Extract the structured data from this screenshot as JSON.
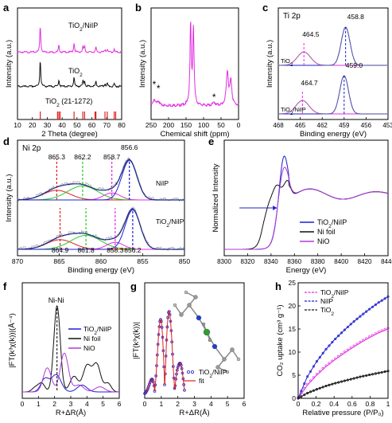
{
  "colors": {
    "pink": "#e22de0",
    "black": "#111111",
    "blue": "#1f1fcf",
    "purple": "#b03ad8",
    "red": "#e02020",
    "green": "#22cc22",
    "olive": "#9a9a3a",
    "gray": "#8c8c8c",
    "darkblue": "#1a2a8a"
  },
  "chart_data": [
    {
      "panel": "a",
      "type": "line",
      "xlabel": "2 Theta (degree)",
      "ylabel": "Intensity (a.u.)",
      "xlim": [
        10,
        80
      ],
      "xticks": [
        10,
        20,
        30,
        40,
        50,
        60,
        70,
        80
      ],
      "series": [
        {
          "name": "TiO2/NiIP",
          "label_main": "TiO",
          "label_sub": "2",
          "label_tail": "/NiIP",
          "color": "pink",
          "peaks": [
            [
              25.3,
              1.0
            ],
            [
              37.8,
              0.25
            ],
            [
              48.0,
              0.35
            ],
            [
              54.0,
              0.2
            ],
            [
              55.1,
              0.2
            ],
            [
              62.7,
              0.18
            ],
            [
              68.8,
              0.1
            ],
            [
              70.3,
              0.1
            ],
            [
              75.0,
              0.1
            ]
          ]
        },
        {
          "name": "TiO2",
          "label_main": "TiO",
          "label_sub": "2",
          "label_tail": "",
          "color": "black",
          "peaks": [
            [
              25.3,
              1.0
            ],
            [
              37.8,
              0.25
            ],
            [
              48.0,
              0.35
            ],
            [
              54.0,
              0.2
            ],
            [
              55.1,
              0.2
            ],
            [
              62.7,
              0.18
            ],
            [
              68.8,
              0.1
            ],
            [
              70.3,
              0.1
            ],
            [
              75.0,
              0.1
            ]
          ]
        }
      ],
      "reference": {
        "label_main": "TiO",
        "label_sub": "2",
        "label_tail": " (21-1272)",
        "color": "red",
        "positions": [
          25.3,
          36.9,
          37.8,
          38.6,
          48.0,
          53.9,
          55.1,
          62.1,
          62.7,
          68.8,
          70.3,
          75.0,
          76.0
        ]
      }
    },
    {
      "panel": "b",
      "type": "line",
      "xlabel": "Chemical shift (ppm)",
      "ylabel": "Intensity (a.u.)",
      "xlim": [
        250,
        0
      ],
      "xticks": [
        250,
        200,
        150,
        100,
        50,
        0
      ],
      "color": "pink",
      "annotations": [
        {
          "x": 241,
          "text": "*"
        },
        {
          "x": 229,
          "text": "*"
        },
        {
          "x": 70,
          "text": "*"
        }
      ],
      "peaks": [
        [
          241,
          0.08
        ],
        [
          229,
          0.06
        ],
        [
          137,
          1.0
        ],
        [
          129,
          0.95
        ],
        [
          70,
          0.04
        ],
        [
          32,
          0.42
        ],
        [
          22,
          0.3
        ]
      ]
    },
    {
      "panel": "c",
      "type": "line",
      "title": "Ti 2p",
      "xlabel": "Binding energy (eV)",
      "ylabel": "Intensity (a.u.)",
      "xlim": [
        468,
        453
      ],
      "xticks": [
        468,
        465,
        462,
        459,
        456,
        453
      ],
      "spectra": [
        {
          "name": "TiO2",
          "label_main": "TiO",
          "label_sub": "2",
          "label_tail": "",
          "peak_labels": [
            "464.5",
            "458.8"
          ],
          "peaks": [
            464.5,
            458.8
          ]
        },
        {
          "name": "TiO2/NiIP",
          "label_main": "TiO",
          "label_sub": "2",
          "label_tail": "/NiIP",
          "peak_labels": [
            "464.7",
            "459.0"
          ],
          "peaks": [
            464.7,
            459.0
          ]
        }
      ]
    },
    {
      "panel": "d",
      "type": "line",
      "title": "Ni 2p",
      "xlabel": "Binding energy (eV)",
      "ylabel": "Intensity (a.u.)",
      "xlim": [
        870,
        850
      ],
      "xticks": [
        870,
        865,
        860,
        855,
        850
      ],
      "spectra": [
        {
          "name": "NiIP",
          "label_main": "NiIP",
          "label_sub": "",
          "label_tail": "",
          "peak_labels": [
            "865.3",
            "862.2",
            "858.7",
            "856.6"
          ],
          "peaks": [
            865.3,
            862.2,
            858.7,
            856.6
          ]
        },
        {
          "name": "TiO2/NiIP",
          "label_main": "TiO",
          "label_sub": "2",
          "label_tail": "/NiIP",
          "peak_labels": [
            "864.9",
            "861.8",
            "858.3",
            "856.2"
          ],
          "peaks": [
            864.9,
            861.8,
            858.3,
            856.2
          ]
        }
      ]
    },
    {
      "panel": "e",
      "type": "line",
      "xlabel": "Energy (eV)",
      "ylabel": "Normalized Intensity",
      "xlim": [
        8300,
        8440
      ],
      "xticks": [
        8300,
        8320,
        8340,
        8360,
        8380,
        8400,
        8420,
        8440
      ],
      "legend": "center-right",
      "series": [
        {
          "name": "TiO2/NiIP",
          "label_main": "TiO",
          "label_sub": "2",
          "label_tail": "/NiIP",
          "color": "blue"
        },
        {
          "name": "Ni foil",
          "label_main": "Ni foil",
          "label_sub": "",
          "label_tail": "",
          "color": "black"
        },
        {
          "name": "NiO",
          "label_main": "NiO",
          "label_sub": "",
          "label_tail": "",
          "color": "purple"
        }
      ]
    },
    {
      "panel": "f",
      "type": "line",
      "xlabel": "R+ΔR(Å)",
      "ylabel": "|FT(k³χ(k))|(Å⁻⁴)",
      "xlim": [
        0,
        6
      ],
      "xticks": [
        0,
        1,
        2,
        3,
        4,
        5,
        6
      ],
      "annotation": "Ni-Ni",
      "legend": "center-right",
      "series": [
        {
          "name": "TiO2/NiIP",
          "label_main": "TiO",
          "label_sub": "2",
          "label_tail": "/NiIP",
          "color": "blue"
        },
        {
          "name": "Ni foil",
          "label_main": "Ni foil",
          "label_sub": "",
          "label_tail": "",
          "color": "black"
        },
        {
          "name": "NiO",
          "label_main": "NiO",
          "label_sub": "",
          "label_tail": "",
          "color": "purple"
        }
      ]
    },
    {
      "panel": "g",
      "type": "line",
      "xlabel": "R+ΔR(Å)",
      "ylabel": "|FT(k³χ(k))|",
      "xlim": [
        0,
        6
      ],
      "xticks": [
        0,
        1,
        2,
        3,
        4,
        5,
        6
      ],
      "legend": "lower-right",
      "series": [
        {
          "name": "TiO2/NiIP",
          "label_main": "TiO",
          "label_sub": "2",
          "label_tail": "/NiIP",
          "color": "blue",
          "style": "open-circles"
        },
        {
          "name": "fit",
          "label_main": "fit",
          "label_sub": "",
          "label_tail": "",
          "color": "red",
          "style": "line"
        }
      ]
    },
    {
      "panel": "h",
      "type": "line",
      "xlabel": "Relative pressure (P/P₀)",
      "ylabel": "CO₂ uptake (cm³ g⁻¹)",
      "xlim": [
        0,
        1.0
      ],
      "ylim": [
        0,
        25
      ],
      "xticks": [
        0.0,
        0.2,
        0.4,
        0.6,
        0.8,
        1.0
      ],
      "yticks": [
        0,
        5,
        10,
        15,
        20,
        25
      ],
      "legend": "top-left",
      "x": [
        0,
        0.1,
        0.2,
        0.3,
        0.4,
        0.5,
        0.6,
        0.7,
        0.8,
        0.9,
        1.0
      ],
      "series": [
        {
          "name": "TiO2/NiIP",
          "label_main": "TiO",
          "label_sub": "2",
          "label_tail": "/NiIP",
          "color": "pink",
          "values": [
            0,
            2.8,
            4.9,
            6.7,
            8.2,
            9.6,
            10.9,
            12.1,
            13.2,
            14.2,
            15.0
          ]
        },
        {
          "name": "NiIP",
          "label_main": "NiIP",
          "label_sub": "",
          "label_tail": "",
          "color": "blue",
          "values": [
            0,
            4.6,
            7.8,
            10.4,
            12.6,
            14.5,
            16.3,
            17.9,
            19.4,
            20.8,
            22.0
          ]
        },
        {
          "name": "TiO2",
          "label_main": "TiO",
          "label_sub": "2",
          "label_tail": "",
          "color": "black",
          "values": [
            0,
            1.1,
            1.9,
            2.6,
            3.2,
            3.7,
            4.2,
            4.7,
            5.1,
            5.5,
            5.9
          ]
        }
      ]
    }
  ]
}
